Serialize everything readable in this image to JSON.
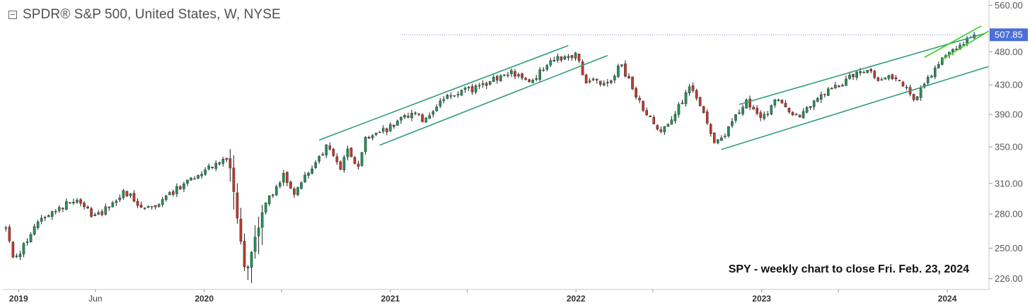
{
  "header": {
    "title": "SPDR® S&P 500, United States, W, NYSE"
  },
  "annotation": "SPY - weekly chart to close Fri. Feb. 23, 2024",
  "colors": {
    "up": "#26905a",
    "down": "#c0392b",
    "wick": "#222222",
    "channel": "#2e9e7e",
    "wedge": "#39d21e",
    "price_tag": "#4a6fd8",
    "grid_axis": "#c9c9c9",
    "price_line": "#7b8fc2"
  },
  "chart_data": {
    "type": "candlestick",
    "title": "SPDR® S&P 500, United States, W, NYSE",
    "xlabel": "",
    "ylabel": "",
    "y_scale": "log",
    "ylim": [
      218,
      570
    ],
    "xlim": [
      "2018-12-01",
      "2024-03-23"
    ],
    "y_ticks": [
      "560.00",
      "480.00",
      "430.00",
      "390.00",
      "350.00",
      "310.00",
      "280.00",
      "250.00",
      "226.00"
    ],
    "x_ticks": [
      {
        "label": "2019",
        "date": "2019-01-01",
        "major": true
      },
      {
        "label": "Jun",
        "date": "2019-06-01",
        "major": false
      },
      {
        "label": "2020",
        "date": "2020-01-01",
        "major": true
      },
      {
        "label": "",
        "date": "2020-06-01",
        "major": false
      },
      {
        "label": "2021",
        "date": "2021-01-01",
        "major": true
      },
      {
        "label": "",
        "date": "2021-06-01",
        "major": false
      },
      {
        "label": "2022",
        "date": "2022-01-01",
        "major": true
      },
      {
        "label": "",
        "date": "2022-06-01",
        "major": false
      },
      {
        "label": "2023",
        "date": "2023-01-01",
        "major": true
      },
      {
        "label": "",
        "date": "2023-06-01",
        "major": false
      },
      {
        "label": "2024",
        "date": "2024-01-01",
        "major": true
      }
    ],
    "last_price": {
      "value": 507.85,
      "label": "507.85"
    },
    "price_path": [
      [
        "2018-12-01",
        278
      ],
      [
        "2018-12-20",
        245
      ],
      [
        "2018-12-28",
        241
      ],
      [
        "2019-02-01",
        270
      ],
      [
        "2019-03-01",
        281
      ],
      [
        "2019-04-30",
        295
      ],
      [
        "2019-06-01",
        276
      ],
      [
        "2019-07-26",
        302
      ],
      [
        "2019-08-30",
        288
      ],
      [
        "2019-10-01",
        290
      ],
      [
        "2019-12-20",
        321
      ],
      [
        "2020-01-17",
        330
      ],
      [
        "2020-02-19",
        337
      ],
      [
        "2020-03-23",
        228
      ],
      [
        "2020-04-24",
        283
      ],
      [
        "2020-06-05",
        319
      ],
      [
        "2020-06-26",
        302
      ],
      [
        "2020-08-28",
        350
      ],
      [
        "2020-09-25",
        328
      ],
      [
        "2020-10-09",
        345
      ],
      [
        "2020-10-30",
        326
      ],
      [
        "2020-11-13",
        358
      ],
      [
        "2020-12-31",
        373
      ],
      [
        "2021-02-12",
        392
      ],
      [
        "2021-03-05",
        384
      ],
      [
        "2021-04-30",
        417
      ],
      [
        "2021-06-25",
        427
      ],
      [
        "2021-08-27",
        450
      ],
      [
        "2021-10-01",
        432
      ],
      [
        "2021-11-19",
        470
      ],
      [
        "2021-12-31",
        474
      ],
      [
        "2022-01-21",
        437
      ],
      [
        "2022-03-04",
        432
      ],
      [
        "2022-03-29",
        460
      ],
      [
        "2022-05-20",
        389
      ],
      [
        "2022-06-17",
        366
      ],
      [
        "2022-08-16",
        428
      ],
      [
        "2022-09-30",
        358
      ],
      [
        "2022-10-14",
        357
      ],
      [
        "2022-11-30",
        407
      ],
      [
        "2022-12-30",
        382
      ],
      [
        "2023-02-03",
        412
      ],
      [
        "2023-03-10",
        386
      ],
      [
        "2023-04-28",
        415
      ],
      [
        "2023-07-28",
        456
      ],
      [
        "2023-08-18",
        436
      ],
      [
        "2023-09-15",
        443
      ],
      [
        "2023-10-27",
        411
      ],
      [
        "2023-12-29",
        475
      ],
      [
        "2024-02-23",
        507.85
      ]
    ],
    "trendlines": [
      {
        "name": "channel-2020-2021-upper",
        "start": [
          "2020-08-14",
          358
        ],
        "end": [
          "2021-12-17",
          490
        ]
      },
      {
        "name": "channel-2020-2021-lower",
        "start": [
          "2020-12-11",
          352
        ],
        "end": [
          "2022-03-04",
          474
        ]
      },
      {
        "name": "channel-2022-2024-upper",
        "start": [
          "2022-11-18",
          403
        ],
        "end": [
          "2024-03-15",
          510
        ]
      },
      {
        "name": "channel-2022-2024-lower",
        "start": [
          "2022-10-14",
          347
        ],
        "end": [
          "2024-03-22",
          457
        ]
      },
      {
        "name": "wedge-upper",
        "start": [
          "2023-11-17",
          471
        ],
        "end": [
          "2024-03-08",
          523
        ],
        "style": "wedge"
      },
      {
        "name": "wedge-lower",
        "start": [
          "2023-12-22",
          468
        ],
        "end": [
          "2024-03-22",
          514
        ],
        "style": "wedge"
      }
    ]
  }
}
